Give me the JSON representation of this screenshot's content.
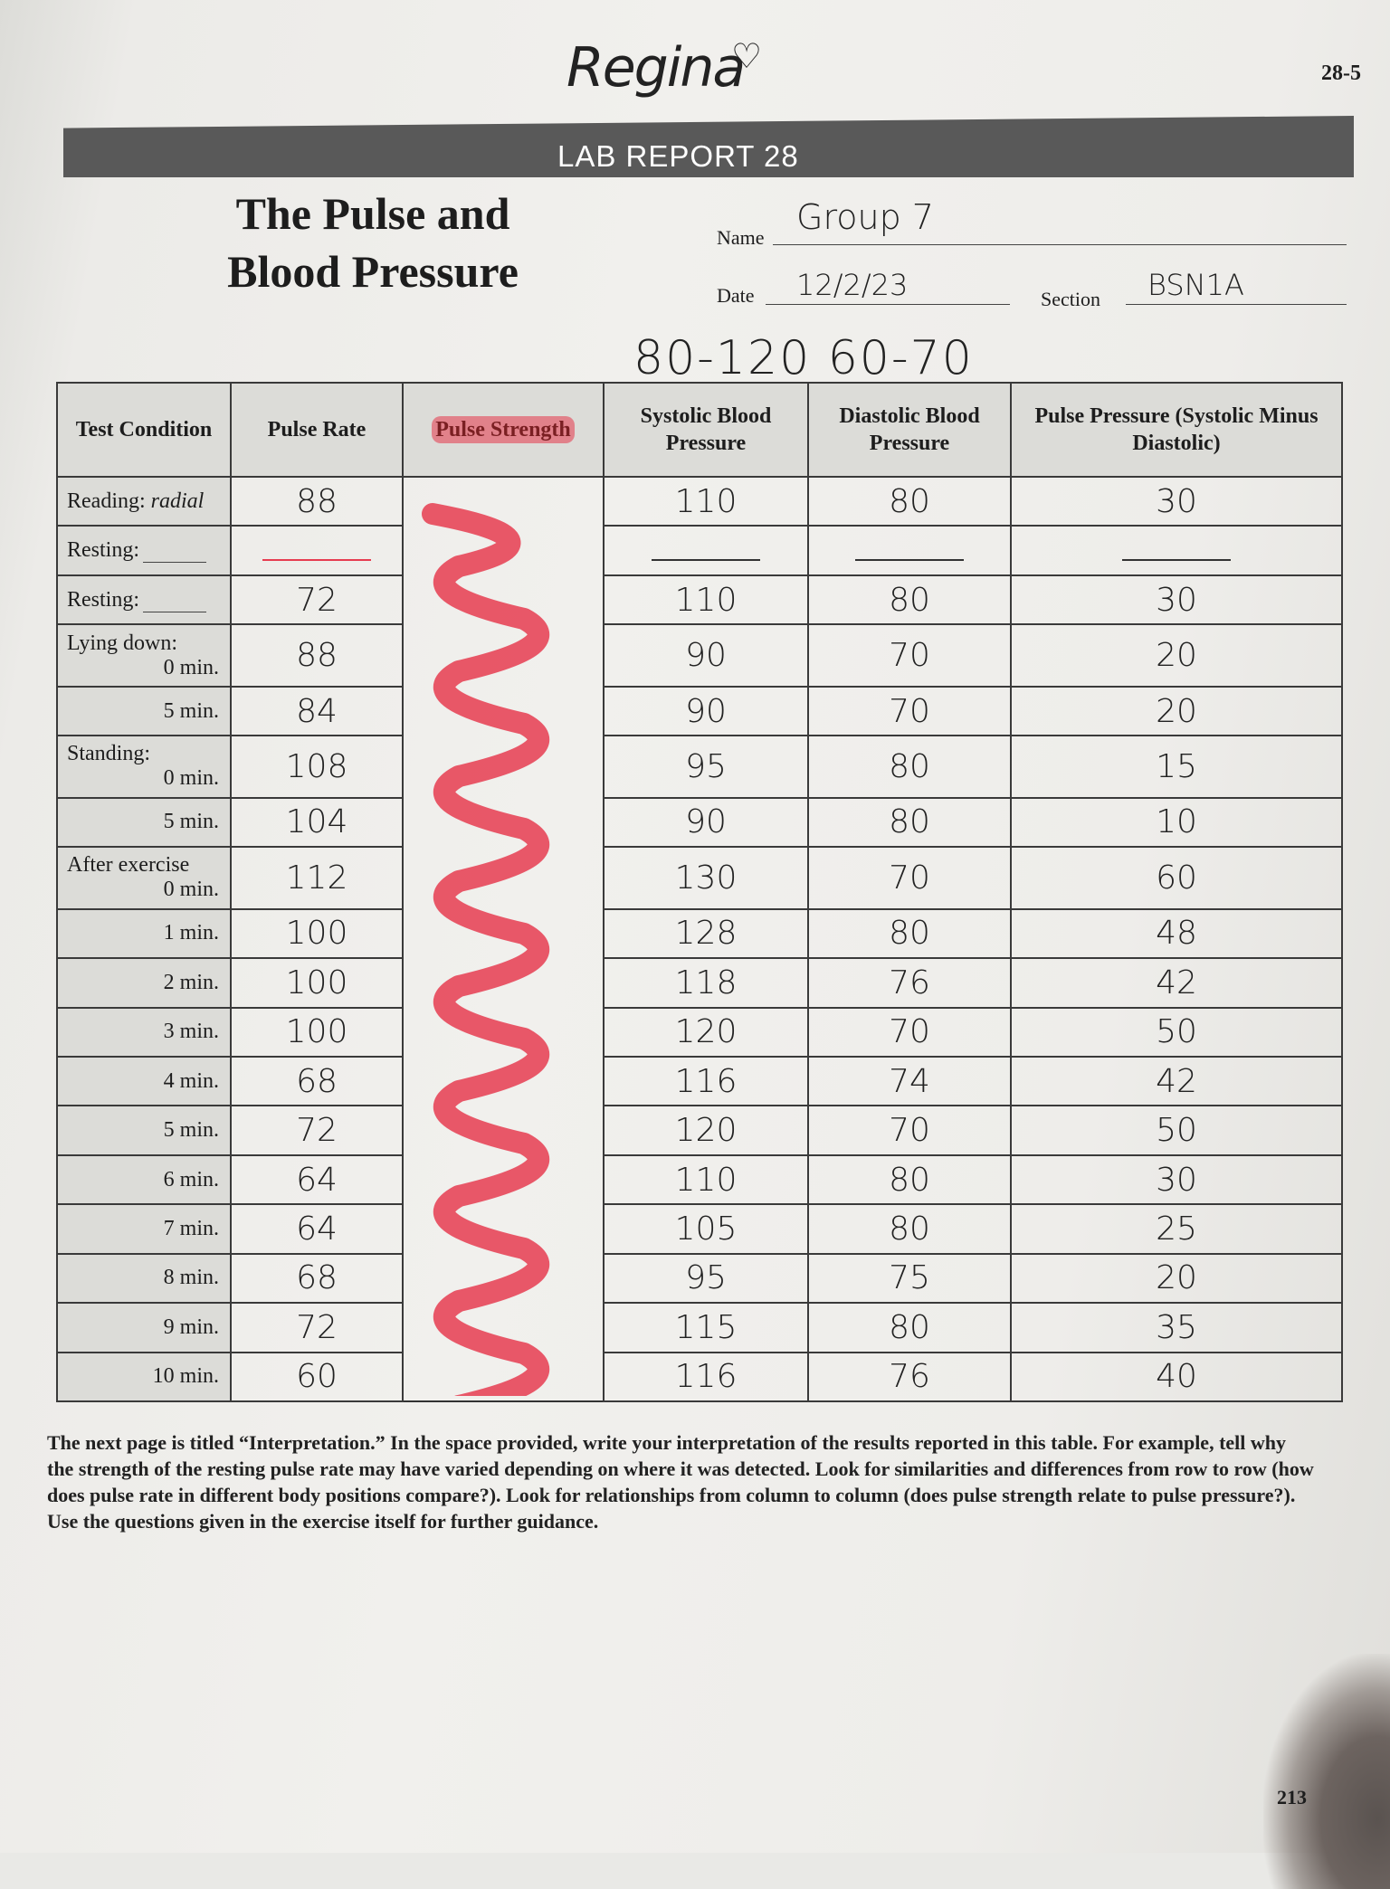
{
  "page_id": "28-5",
  "page_number": "213",
  "signature": "Regina",
  "banner": "LAB REPORT 28",
  "title": [
    "The Pulse and",
    "Blood Pressure"
  ],
  "fields": {
    "name_label": "Name",
    "name_value": "Group 7",
    "date_label": "Date",
    "date_value": "12/2/23",
    "section_label": "Section",
    "section_value": "BSN1A"
  },
  "normal_range_note": "80-120 60-70",
  "table": {
    "headers": {
      "condition": "Test Condition",
      "pulse_rate": "Pulse Rate",
      "pulse_strength": "Pulse Strength",
      "systolic": "Systolic Blood Pressure",
      "diastolic": "Diastolic Blood Pressure",
      "pulse_pressure": "Pulse Pressure (Systolic Minus Diastolic)"
    },
    "rows": [
      {
        "label": "Reading:",
        "label_italic": "radial",
        "sub": "",
        "rate": "88",
        "sys": "110",
        "dia": "80",
        "pp": "30"
      },
      {
        "label": "Resting:",
        "blank": true,
        "sub": "",
        "rate": "—",
        "sys": "—",
        "dia": "—",
        "pp": "—"
      },
      {
        "label": "Resting:",
        "blank": true,
        "sub": "",
        "rate": "72",
        "sys": "110",
        "dia": "80",
        "pp": "30"
      },
      {
        "label": "Lying down:",
        "sub": "0 min.",
        "rate": "88",
        "sys": "90",
        "dia": "70",
        "pp": "20"
      },
      {
        "label": "",
        "sub": "5 min.",
        "rate": "84",
        "sys": "90",
        "dia": "70",
        "pp": "20"
      },
      {
        "label": "Standing:",
        "sub": "0 min.",
        "rate": "108",
        "sys": "95",
        "dia": "80",
        "pp": "15"
      },
      {
        "label": "",
        "sub": "5 min.",
        "rate": "104",
        "sys": "90",
        "dia": "80",
        "pp": "10"
      },
      {
        "label": "After exercise",
        "sub": "0 min.",
        "rate": "112",
        "sys": "130",
        "dia": "70",
        "pp": "60"
      },
      {
        "label": "",
        "sub": "1 min.",
        "rate": "100",
        "sys": "128",
        "dia": "80",
        "pp": "48"
      },
      {
        "label": "",
        "sub": "2 min.",
        "rate": "100",
        "sys": "118",
        "dia": "76",
        "pp": "42"
      },
      {
        "label": "",
        "sub": "3 min.",
        "rate": "100",
        "sys": "120",
        "dia": "70",
        "pp": "50"
      },
      {
        "label": "",
        "sub": "4 min.",
        "rate": "68",
        "sys": "116",
        "dia": "74",
        "pp": "42"
      },
      {
        "label": "",
        "sub": "5 min.",
        "rate": "72",
        "sys": "120",
        "dia": "70",
        "pp": "50"
      },
      {
        "label": "",
        "sub": "6 min.",
        "rate": "64",
        "sys": "110",
        "dia": "80",
        "pp": "30"
      },
      {
        "label": "",
        "sub": "7 min.",
        "rate": "64",
        "sys": "105",
        "dia": "80",
        "pp": "25"
      },
      {
        "label": "",
        "sub": "8 min.",
        "rate": "68",
        "sys": "95",
        "dia": "75",
        "pp": "20"
      },
      {
        "label": "",
        "sub": "9 min.",
        "rate": "72",
        "sys": "115",
        "dia": "80",
        "pp": "35"
      },
      {
        "label": "",
        "sub": "10 min.",
        "rate": "60",
        "sys": "116",
        "dia": "76",
        "pp": "40"
      }
    ],
    "strength_mark_color": "#e63c50"
  },
  "instructions": "The next page is titled “Interpretation.” In the space provided, write your interpretation of the results reported in this table. For example, tell why the strength of the resting pulse rate may have varied depending on where it was detected. Look for similarities and differences from row to row (how does pulse rate in different body positions compare?). Look for relationships from column to column (does pulse strength relate to pulse pressure?). Use the questions given in the exercise itself for further guidance."
}
